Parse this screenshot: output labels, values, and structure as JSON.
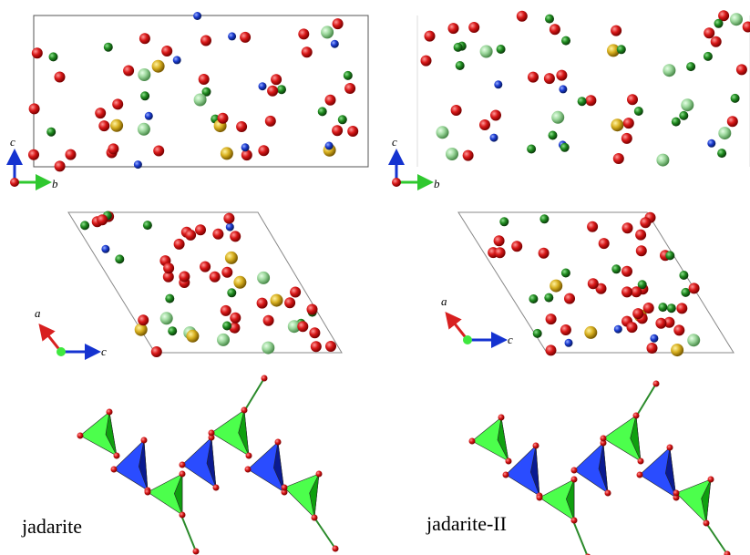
{
  "top_left": {
    "axis_vertical": "c",
    "axis_horizontal": "b"
  },
  "top_right": {
    "axis_vertical": "c",
    "axis_horizontal": "b"
  },
  "middle_left": {
    "axis_vertical": "a",
    "axis_horizontal": "c"
  },
  "middle_right": {
    "axis_vertical": "a",
    "axis_horizontal": "c"
  },
  "bottom_left": {
    "caption": "jadarite"
  },
  "bottom_right": {
    "caption": "jadarite-II"
  }
}
